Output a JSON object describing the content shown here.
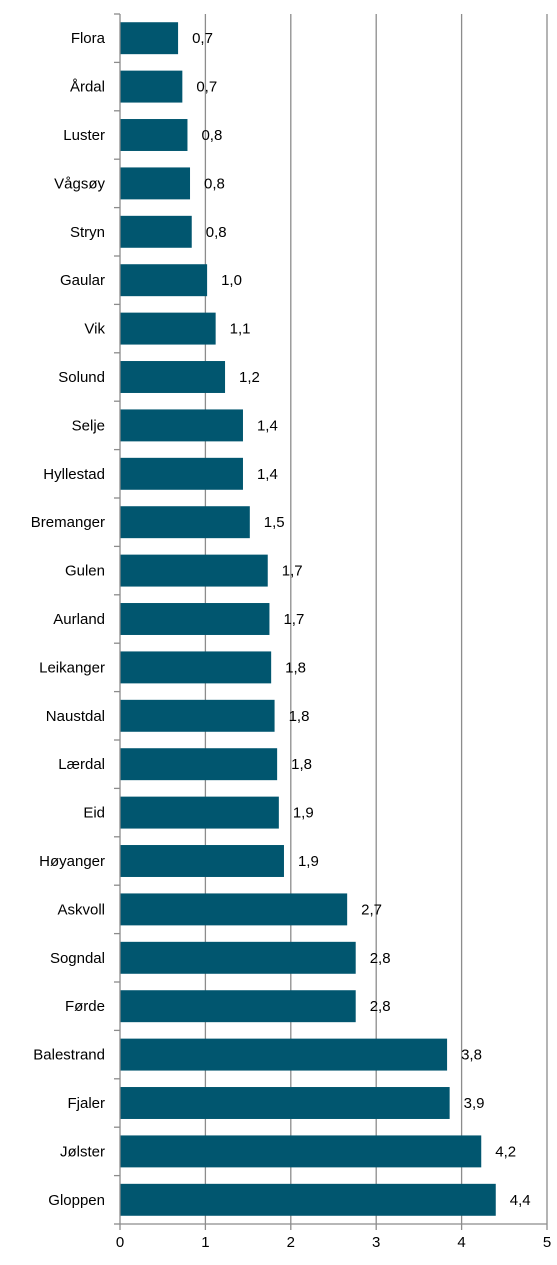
{
  "chart_data": {
    "type": "bar",
    "orientation": "horizontal",
    "title": "",
    "xlabel": "",
    "ylabel": "",
    "xlim": [
      0,
      5
    ],
    "x_ticks": [
      "0",
      "1",
      "2",
      "3",
      "4",
      "5"
    ],
    "grid": true,
    "legend": "none",
    "bar_color": "#01566f",
    "categories": [
      "Flora",
      "Årdal",
      "Luster",
      "Vågsøy",
      "Stryn",
      "Gaular",
      "Vik",
      "Solund",
      "Selje",
      "Hyllestad",
      "Bremanger",
      "Gulen",
      "Aurland",
      "Leikanger",
      "Naustdal",
      "Lærdal",
      "Eid",
      "Høyanger",
      "Askvoll",
      "Sogndal",
      "Førde",
      "Balestrand",
      "Fjaler",
      "Jølster",
      "Gloppen"
    ],
    "values": [
      0.68,
      0.73,
      0.79,
      0.82,
      0.84,
      1.02,
      1.12,
      1.23,
      1.44,
      1.44,
      1.52,
      1.73,
      1.75,
      1.77,
      1.81,
      1.84,
      1.86,
      1.92,
      2.66,
      2.76,
      2.76,
      3.83,
      3.86,
      4.23,
      4.4
    ],
    "data_labels": [
      "0,7",
      "0,7",
      "0,8",
      "0,8",
      "0,8",
      "1,0",
      "1,1",
      "1,2",
      "1,4",
      "1,4",
      "1,5",
      "1,7",
      "1,7",
      "1,8",
      "1,8",
      "1,8",
      "1,9",
      "1,9",
      "2,7",
      "2,8",
      "2,8",
      "3,8",
      "3,9",
      "4,2",
      "4,4"
    ]
  }
}
